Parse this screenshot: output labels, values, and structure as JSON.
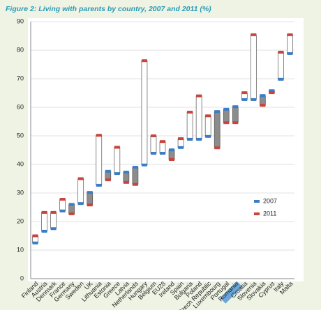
{
  "chart_data": {
    "type": "floating-bar",
    "title": "Figure 2: Living with parents by country, 2007 and 2011 (%)",
    "categories": [
      "Finland",
      "Austria",
      "Denmark",
      "France",
      "Germany",
      "Sweden",
      "UK",
      "Lithuania",
      "Estonia",
      "Greece",
      "Latvia",
      "Netherlands",
      "Hungary",
      "Belgium",
      "EU28",
      "Ireland",
      "Spain",
      "Bulgaria",
      "Poland",
      "Czech Republic",
      "Luxembourg",
      "Portugal",
      "Romania",
      "Croatia",
      "Slovenia",
      "Slovakia",
      "Cyprus",
      "Italy",
      "Malta"
    ],
    "series": [
      {
        "name": "2007",
        "color": "#3b7dc4",
        "values": [
          12.5,
          16.6,
          17.5,
          23.7,
          26,
          26.3,
          30.2,
          32.7,
          37.6,
          36.8,
          37.3,
          39,
          39.8,
          43.9,
          43.9,
          45.1,
          45.9,
          48.8,
          48.8,
          49.8,
          58.5,
          59.3,
          60.2,
          62.7,
          62.7,
          64.1,
          65.8,
          69.8,
          78.8
        ]
      },
      {
        "name": "2011",
        "color": "#c8443c",
        "values": [
          15,
          23.2,
          23.2,
          27.8,
          22.7,
          35,
          25.8,
          50.2,
          34.6,
          46,
          33.7,
          33,
          76.3,
          50,
          48,
          41.7,
          49,
          58.3,
          64,
          57,
          45.8,
          54.6,
          54.6,
          65.1,
          85.4,
          60.7,
          65.1,
          79.3,
          85.4
        ]
      }
    ],
    "increase_color": "#ffffff",
    "decrease_color": "#8c8c8c",
    "highlight": "Romania",
    "highlight_color": "#6aa7d8",
    "ylim": [
      0,
      90
    ],
    "yticks": [
      0,
      10,
      20,
      30,
      40,
      50,
      60,
      70,
      80,
      90
    ],
    "grid": true
  }
}
